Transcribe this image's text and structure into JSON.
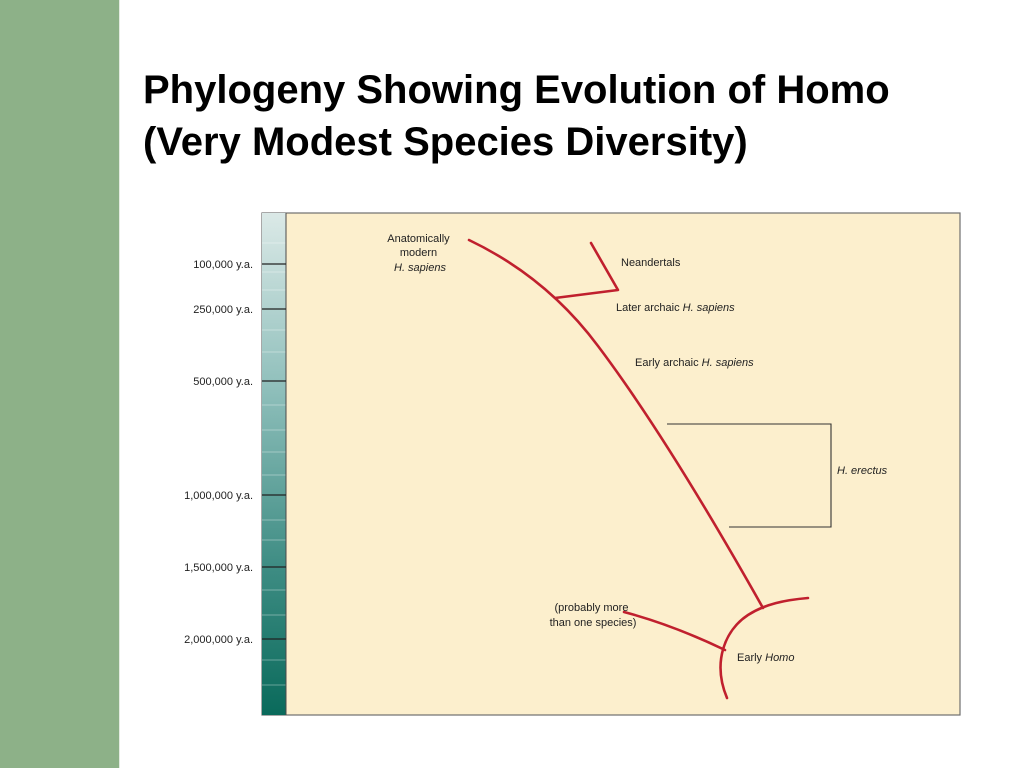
{
  "slide": {
    "title_line1": "Phylogeny Showing Evolution of Homo",
    "title_line2": "(Very Modest Species Diversity)"
  },
  "colors": {
    "sidebar": "#8db188",
    "panel": "#fcefcd",
    "lineage": "#c0202e",
    "scale_top": "#d9e8e6",
    "scale_bottom": "#0c6e60"
  },
  "timescale": {
    "ticks": [
      {
        "label": "100,000 y.a."
      },
      {
        "label": "250,000 y.a."
      },
      {
        "label": "500,000 y.a."
      },
      {
        "label": "1,000,000 y.a."
      },
      {
        "label": "1,500,000 y.a."
      },
      {
        "label": "2,000,000 y.a."
      }
    ]
  },
  "labels": {
    "modern_1": "Anatomically",
    "modern_2": "modern",
    "modern_3": "H. sapiens",
    "neandertals": "Neandertals",
    "later_archaic_prefix": "Later archaic ",
    "later_archaic_species": "H. sapiens",
    "early_archaic_prefix": "Early archaic ",
    "early_archaic_species": "H. sapiens",
    "erectus": "H. erectus",
    "probably_1": "(probably more",
    "probably_2": "than one species)",
    "early_homo_prefix": "Early ",
    "early_homo_genus": "Homo"
  }
}
